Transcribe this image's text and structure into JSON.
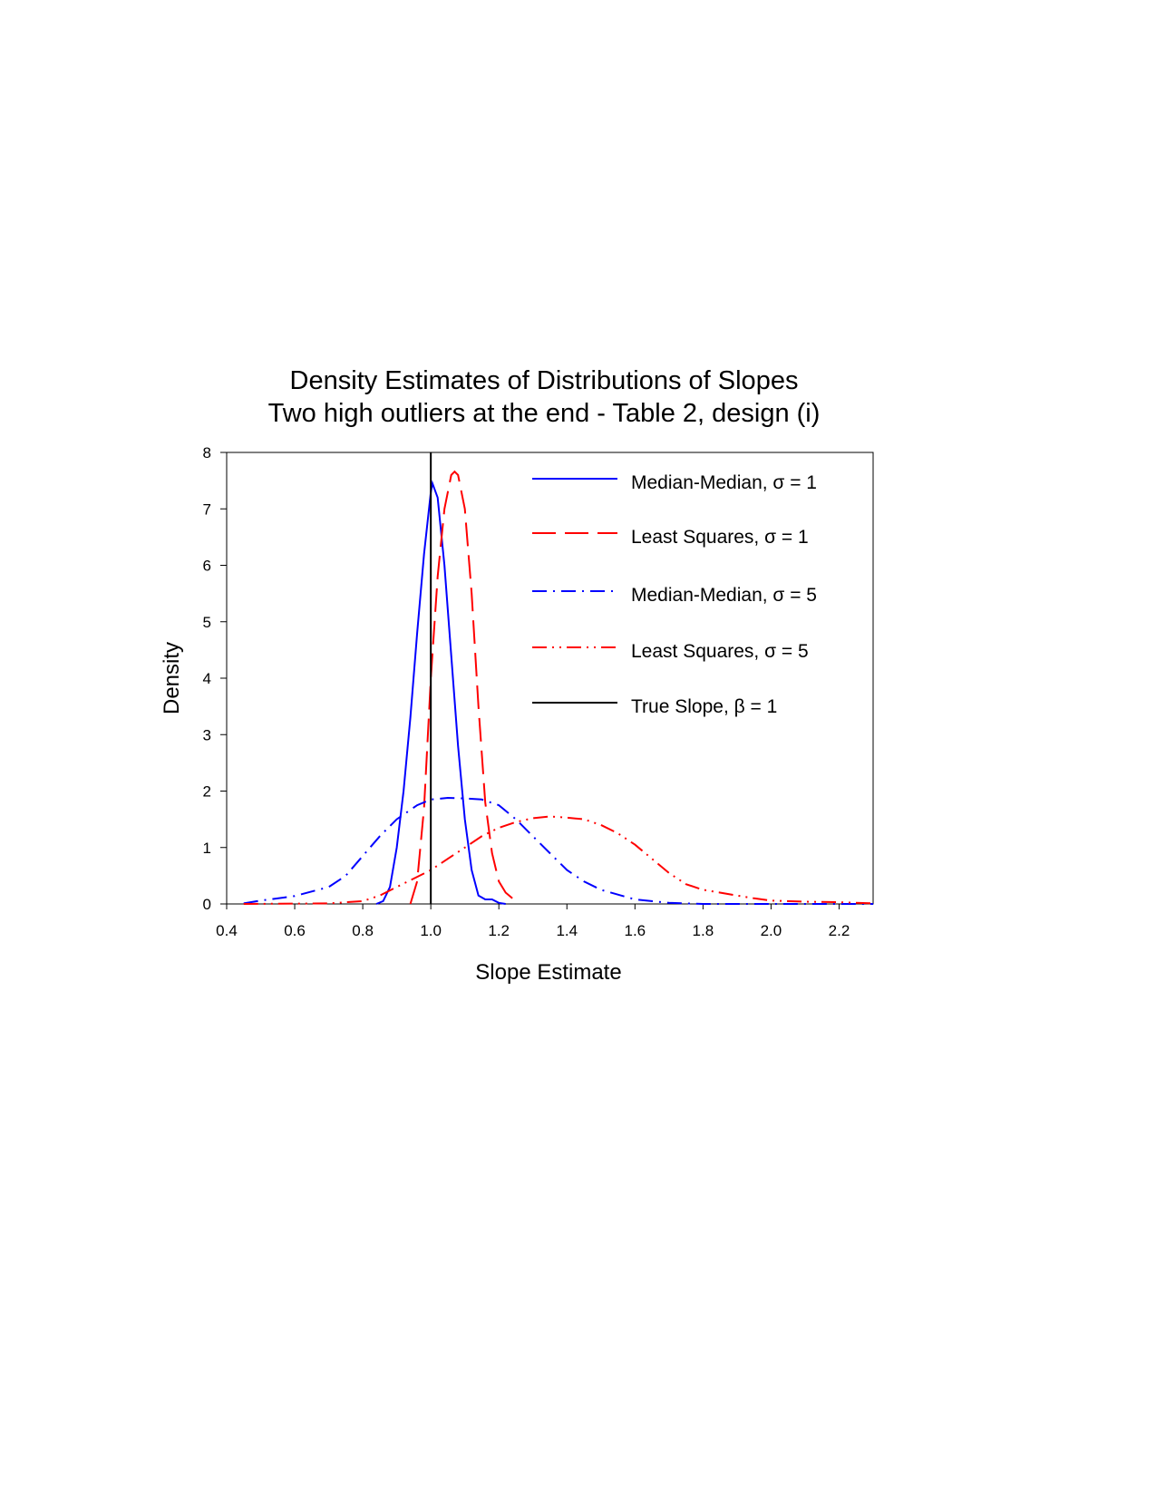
{
  "chart_data": {
    "type": "line",
    "title": "Density Estimates of Distributions of Slopes",
    "subtitle": "Two high outliers at the end - Table 2, design (i)",
    "xlabel": "Slope Estimate",
    "ylabel": "Density",
    "xlim": [
      0.4,
      2.3
    ],
    "ylim": [
      0,
      8
    ],
    "xticks": [
      "0.4",
      "0.6",
      "0.8",
      "1.0",
      "1.2",
      "1.4",
      "1.6",
      "1.8",
      "2.0",
      "2.2"
    ],
    "yticks": [
      "0",
      "1",
      "2",
      "3",
      "4",
      "5",
      "6",
      "7",
      "8"
    ],
    "grid": false,
    "legend_position": "top-right",
    "vline": {
      "x": 1.0,
      "name": "True Slope, β = 1",
      "color": "#000000"
    },
    "series": [
      {
        "name": "Median-Median, σ = 1",
        "color": "#0000ff",
        "style": "solid",
        "x": [
          0.84,
          0.86,
          0.88,
          0.9,
          0.92,
          0.94,
          0.96,
          0.98,
          1.0,
          1.005,
          1.02,
          1.04,
          1.06,
          1.08,
          1.1,
          1.12,
          1.14,
          1.16,
          1.18,
          1.2,
          1.22
        ],
        "y": [
          0,
          0.05,
          0.3,
          1.0,
          2.0,
          3.3,
          4.8,
          6.2,
          7.3,
          7.45,
          7.2,
          6.0,
          4.4,
          2.8,
          1.5,
          0.6,
          0.15,
          0.08,
          0.08,
          0.02,
          0
        ]
      },
      {
        "name": "Least Squares, σ = 1",
        "color": "#ff0000",
        "style": "dashed",
        "x": [
          0.94,
          0.96,
          0.98,
          1.0,
          1.02,
          1.04,
          1.06,
          1.07,
          1.08,
          1.1,
          1.12,
          1.14,
          1.16,
          1.18,
          1.2,
          1.22,
          1.24,
          1.26
        ],
        "y": [
          0,
          0.4,
          1.7,
          4.0,
          5.8,
          7.0,
          7.6,
          7.66,
          7.6,
          7.0,
          5.5,
          3.5,
          1.8,
          0.9,
          0.4,
          0.2,
          0.1,
          0
        ]
      },
      {
        "name": "Median-Median, σ = 5",
        "color": "#0000ff",
        "style": "dash-dot",
        "x": [
          0.45,
          0.5,
          0.6,
          0.7,
          0.75,
          0.8,
          0.85,
          0.9,
          0.96,
          1.0,
          1.05,
          1.1,
          1.15,
          1.2,
          1.25,
          1.3,
          1.35,
          1.4,
          1.45,
          1.5,
          1.6,
          1.7,
          1.8,
          2.3
        ],
        "y": [
          0.01,
          0.06,
          0.14,
          0.3,
          0.5,
          0.85,
          1.2,
          1.5,
          1.75,
          1.85,
          1.88,
          1.87,
          1.85,
          1.75,
          1.5,
          1.2,
          0.9,
          0.6,
          0.4,
          0.25,
          0.08,
          0.02,
          0,
          0
        ]
      },
      {
        "name": "Least Squares, σ = 5",
        "color": "#ff0000",
        "style": "dash-dot-dot",
        "x": [
          0.45,
          0.7,
          0.8,
          0.85,
          0.9,
          0.95,
          1.0,
          1.05,
          1.1,
          1.15,
          1.2,
          1.25,
          1.3,
          1.35,
          1.4,
          1.45,
          1.5,
          1.55,
          1.6,
          1.65,
          1.7,
          1.75,
          1.8,
          1.85,
          1.9,
          1.95,
          2.0,
          2.1,
          2.2,
          2.3
        ],
        "y": [
          0,
          0.01,
          0.05,
          0.15,
          0.3,
          0.45,
          0.6,
          0.8,
          1.0,
          1.2,
          1.35,
          1.45,
          1.52,
          1.55,
          1.53,
          1.5,
          1.4,
          1.25,
          1.05,
          0.8,
          0.55,
          0.35,
          0.25,
          0.2,
          0.15,
          0.1,
          0.06,
          0.04,
          0.03,
          0.01
        ]
      }
    ]
  }
}
